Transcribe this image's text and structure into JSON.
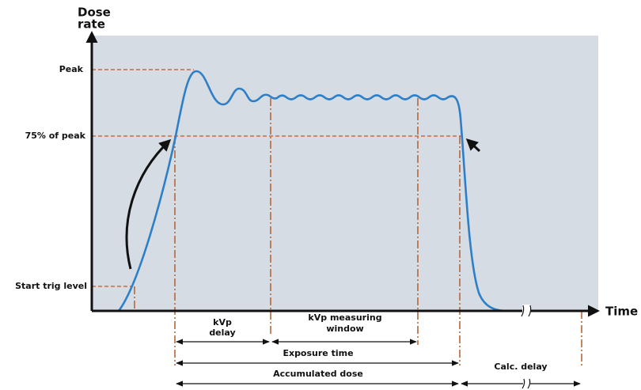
{
  "axes": {
    "y_label": [
      "Dose",
      "rate"
    ],
    "x_label": "Time"
  },
  "levels": {
    "peak": "Peak",
    "seventy_five": "75% of peak",
    "start_trig": "Start trig level"
  },
  "intervals": {
    "kvp_delay": [
      "kVp",
      "delay"
    ],
    "kvp_window": [
      "kVp measuring",
      "window"
    ],
    "exposure_time": "Exposure time",
    "accumulated_dose": "Accumulated dose",
    "calc_delay": "Calc. delay"
  }
}
